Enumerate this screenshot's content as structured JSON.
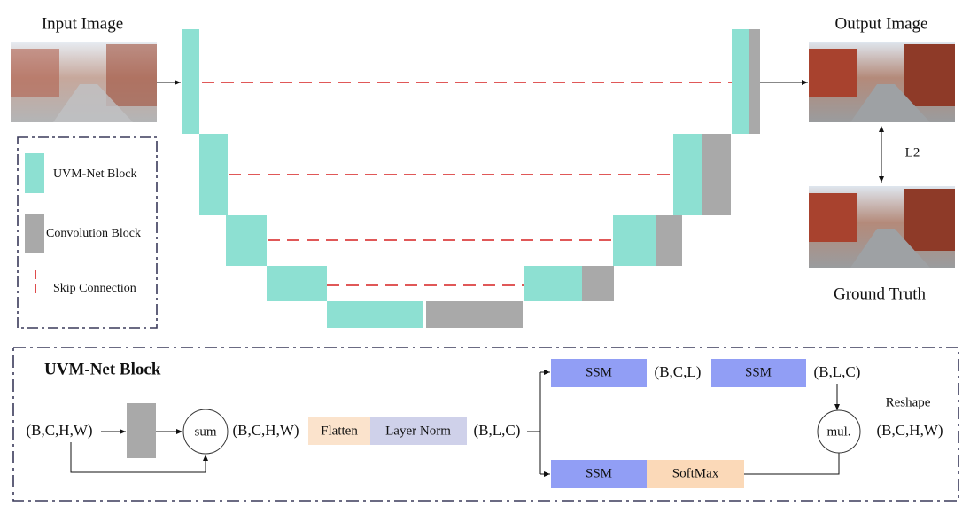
{
  "images": {
    "input": "Input Image",
    "output": "Output Image",
    "ground_truth": "Ground Truth",
    "loss": "L2"
  },
  "legend": [
    "UVM-Net Block",
    "Convolution Block",
    "Skip Connection"
  ],
  "block": {
    "title": "UVM-Net Block",
    "nodes": [
      "(B,C,H,W)",
      "sum",
      "(B,C,H,W)",
      "Flatten",
      "Layer Norm",
      "(B,L,C)",
      "SSM",
      "(B,C,L)",
      "SSM",
      "(B,L,C)",
      "SSM",
      "SoftMax",
      "Reshape",
      "mul.",
      "(B,C,H,W)"
    ]
  }
}
